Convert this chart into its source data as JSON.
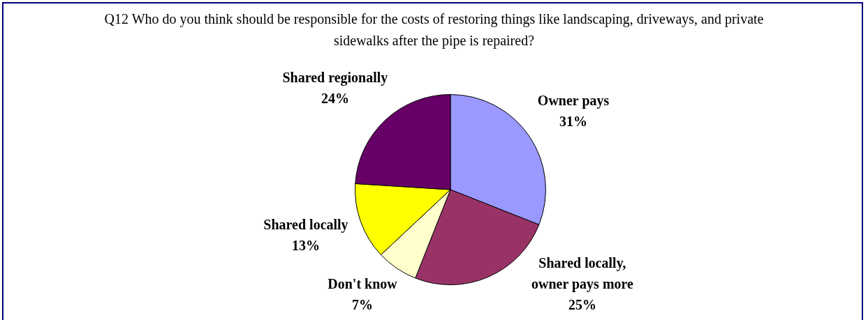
{
  "chart_data": {
    "type": "pie",
    "title": "Q12 Who do you think should be responsible for the costs of restoring things like landscaping, driveways, and private sidewalks after the pipe is repaired?",
    "categories": [
      "Owner pays",
      "Shared locally, owner pays more",
      "Don't know",
      "Shared locally",
      "Shared regionally"
    ],
    "values": [
      31,
      25,
      7,
      13,
      24
    ],
    "colors": [
      "#9999ff",
      "#993366",
      "#ffffcc",
      "#ffff00",
      "#660066"
    ],
    "value_labels": [
      "31%",
      "25%",
      "7%",
      "13%",
      "24%"
    ]
  }
}
